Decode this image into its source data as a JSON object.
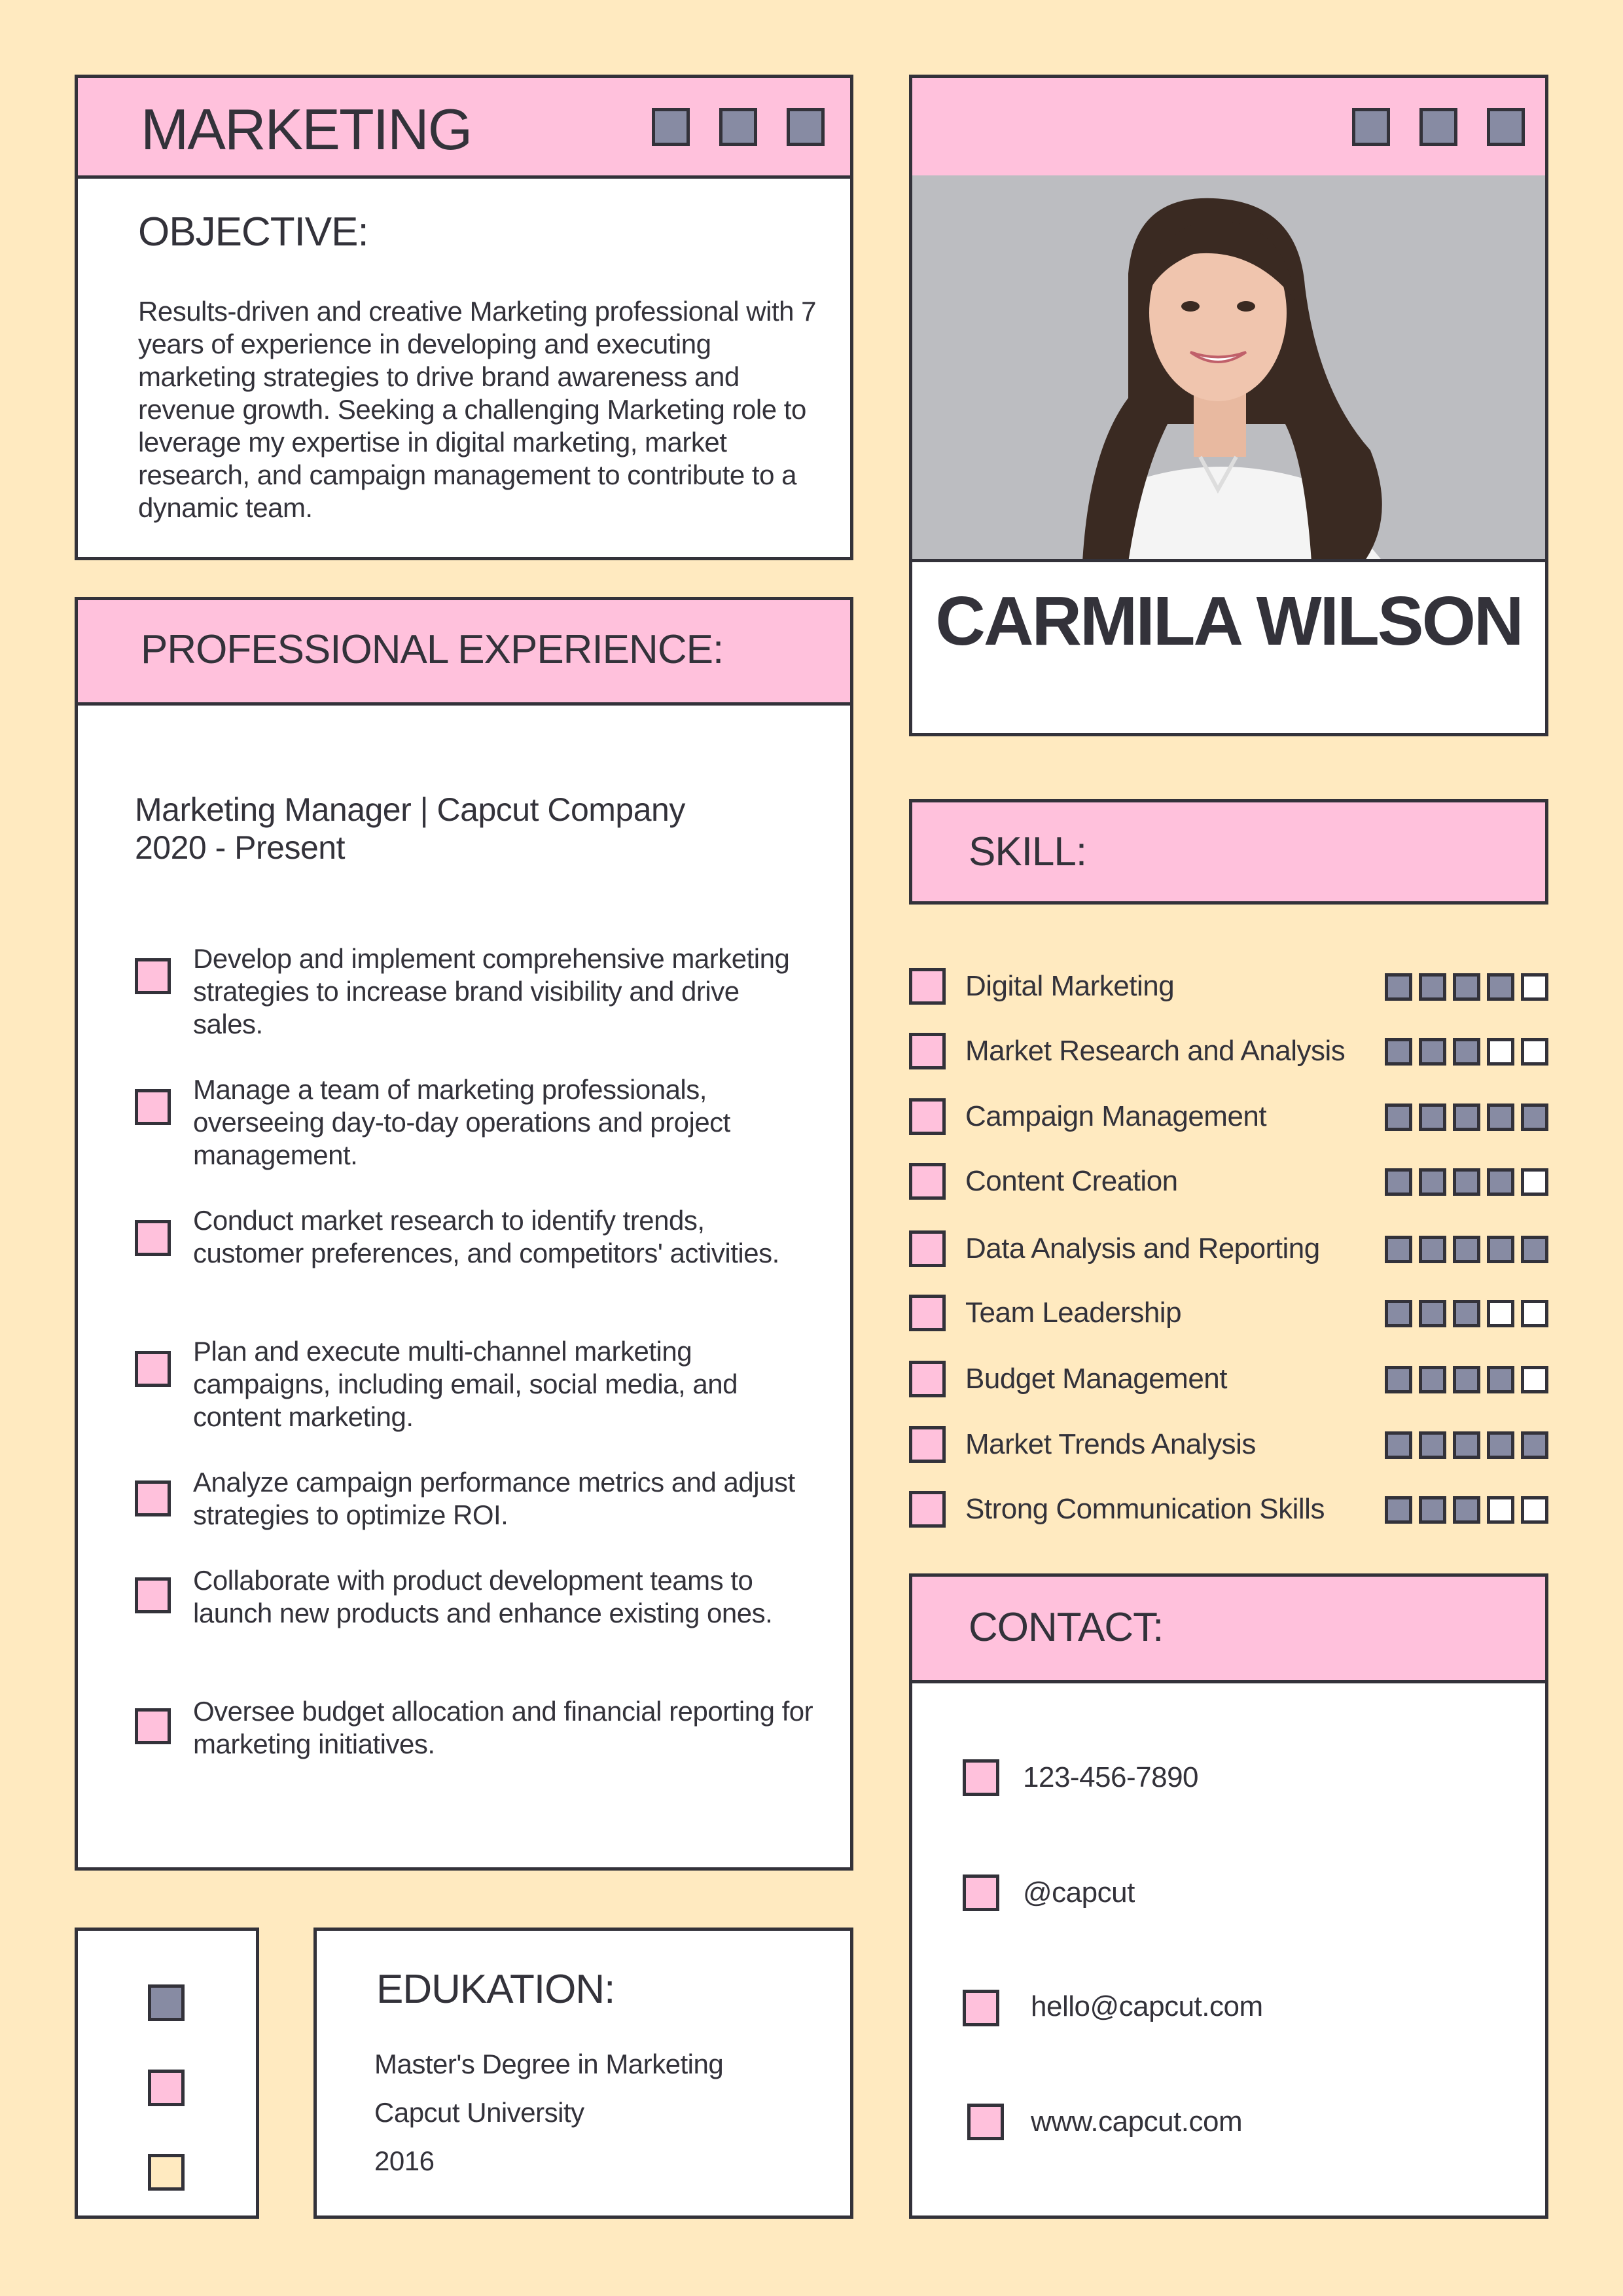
{
  "colors": {
    "background": "#ffeac0",
    "accent_pink": "#ffc1dc",
    "square_grey": "#878ba3",
    "ink": "#33323a"
  },
  "header": {
    "title": "MARKETING"
  },
  "objective": {
    "heading": "OBJECTIVE:",
    "text": "Results-driven and creative Marketing professional with 7 years of experience in developing and executing marketing strategies to drive brand awareness and revenue growth. Seeking a challenging Marketing role to leverage my expertise in digital marketing, market research, and campaign management to contribute to a dynamic team."
  },
  "profile": {
    "name": "CARMILA WILSON",
    "photo_icon": "portrait-photo"
  },
  "experience": {
    "heading": "PROFESSIONAL EXPERIENCE:",
    "job_title": "Marketing Manager | Capcut Company",
    "period": "2020 - Present",
    "bullets": [
      "Develop and implement comprehensive marketing strategies to increase brand visibility and drive sales.",
      "Manage a team of marketing professionals, overseeing day-to-day operations and project management.",
      "Conduct market research to identify trends, customer preferences, and competitors' activities.",
      "Plan and execute multi-channel marketing campaigns, including email, social media, and content marketing.",
      "Analyze campaign performance metrics and adjust strategies to optimize ROI.",
      "Collaborate with product development teams to launch new products and enhance existing ones.",
      "Oversee budget allocation and financial reporting for marketing initiatives."
    ]
  },
  "skills": {
    "heading": "SKILL:",
    "max_rating": 5,
    "items": [
      {
        "label": "Digital Marketing",
        "rating": 4
      },
      {
        "label": "Market Research and Analysis",
        "rating": 3
      },
      {
        "label": "Campaign Management",
        "rating": 5
      },
      {
        "label": "Content Creation",
        "rating": 4
      },
      {
        "label": "Data Analysis and Reporting",
        "rating": 5
      },
      {
        "label": "Team Leadership",
        "rating": 3
      },
      {
        "label": "Budget Management",
        "rating": 4
      },
      {
        "label": "Market Trends Analysis",
        "rating": 5
      },
      {
        "label": "Strong Communication Skills",
        "rating": 3
      }
    ]
  },
  "contact": {
    "heading": "CONTACT:",
    "phone": "123-456-7890",
    "social": "@capcut",
    "email": "hello@capcut.com",
    "website": "www.capcut.com"
  },
  "education": {
    "heading": "EDUKATION:",
    "degree": "Master's Degree in Marketing",
    "school": "Capcut University",
    "year": "2016"
  }
}
